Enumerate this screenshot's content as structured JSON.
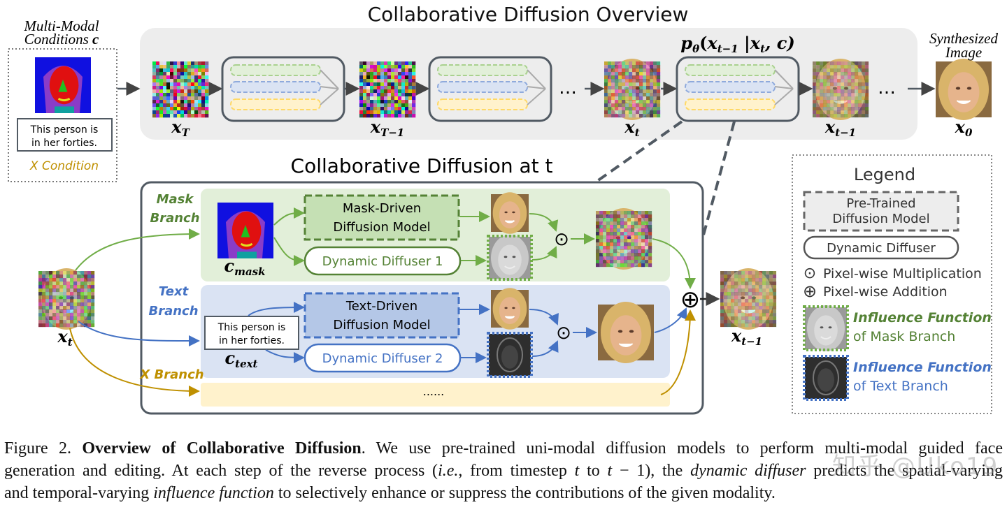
{
  "overview": {
    "title": "Collaborative Diffusion Overview",
    "conditions_title_1": "Multi-Modal",
    "conditions_title_2": "Conditions",
    "conditions_symbol": "c",
    "condition_text_1": "This person is",
    "condition_text_2": "in her forties.",
    "x_condition": "X Condition",
    "ellipsis": "…",
    "step_formula": {
      "p": "p",
      "theta": "θ",
      "open": "(",
      "x1": "x",
      "s1": "t−1",
      "bar": " |",
      "x2": "x",
      "s2": "t",
      "rest": ", c)"
    },
    "synth_1": "Synthesized",
    "synth_2": "Image",
    "labels": [
      {
        "base": "x",
        "sub": "T"
      },
      {
        "base": "x",
        "sub": "T−1"
      },
      {
        "base": "x",
        "sub": "t"
      },
      {
        "base": "x",
        "sub": "t−1"
      },
      {
        "base": "x",
        "sub": "0"
      }
    ]
  },
  "at_t": {
    "title": "Collaborative Diffusion at t",
    "mask_branch_1": "Mask",
    "mask_branch_2": "Branch",
    "text_branch_1": "Text",
    "text_branch_2": "Branch",
    "x_branch": "X Branch",
    "mask_model_1": "Mask-Driven",
    "mask_model_2": "Diffusion Model",
    "text_model_1": "Text-Driven",
    "text_model_2": "Diffusion Model",
    "diffuser_1": "Dynamic Diffuser 1",
    "diffuser_2": "Dynamic Diffuser 2",
    "text_cond_1": "This person is",
    "text_cond_2": "in her forties.",
    "c_mask": {
      "base": "c",
      "sub": "mask"
    },
    "c_text": {
      "base": "c",
      "sub": "text"
    },
    "x_in": {
      "base": "x",
      "sub": "t"
    },
    "x_out": {
      "base": "x",
      "sub": "t−1"
    },
    "x_branch_dots": "......",
    "mult": "⊙",
    "add": "⊕"
  },
  "legend": {
    "title": "Legend",
    "pretrained_1": "Pre-Trained",
    "pretrained_2": "Diffusion Model",
    "dynamic": "Dynamic Diffuser",
    "mult": "Pixel-wise Multiplication",
    "add": "Pixel-wise Addition",
    "infl_mask_1": "Influence Function",
    "infl_mask_2": "of Mask Branch",
    "infl_text_1": "Influence Function",
    "infl_text_2": "of Text Branch"
  },
  "caption": {
    "l1a": "Figure 2. ",
    "l1b": "Overview of Collaborative Diffusion",
    "l1c": ". We use pre-trained uni-modal diffusion models to perform multi-modal guided face",
    "l2a": "generation and editing. At each step of the reverse process (",
    "l2b": "i.e.",
    "l2c": ", from timestep ",
    "l2d": "t",
    "l2e": " to ",
    "l2f": "t",
    "l2g": " − 1), the ",
    "l2h": "dynamic diffuser",
    "l2i": " predicts the spatial-varying",
    "l3a": "and temporal-varying ",
    "l3b": "influence function",
    "l3c": " to selectively enhance or suppress the contributions of the given modality."
  },
  "watermark": "知乎 @Uko19",
  "colors": {
    "green": "#70ad47",
    "green_text": "#548235",
    "blue": "#4472c4",
    "gold": "#bf9000",
    "box": "#515a63",
    "panel_gray": "#ededed"
  }
}
